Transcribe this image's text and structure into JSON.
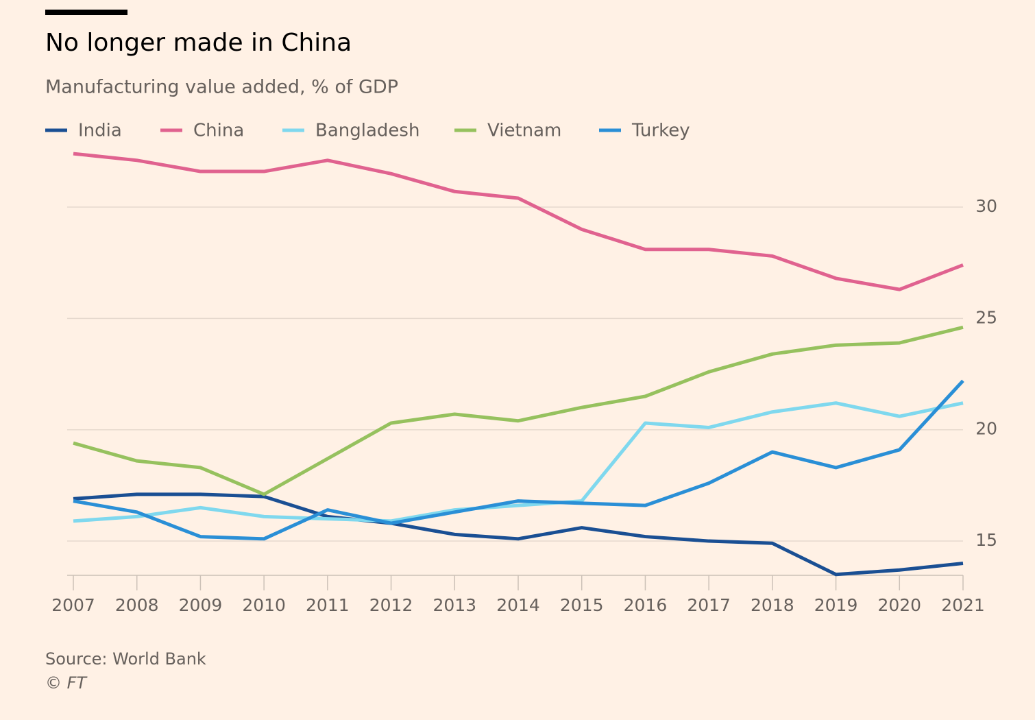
{
  "chart_data": {
    "type": "line",
    "title": "No longer made in China",
    "subtitle": "Manufacturing value added, % of GDP",
    "source": "Source: World Bank",
    "credit": "© FT",
    "categories": [
      "2007",
      "2008",
      "2009",
      "2010",
      "2011",
      "2012",
      "2013",
      "2014",
      "2015",
      "2016",
      "2017",
      "2018",
      "2019",
      "2020",
      "2021"
    ],
    "series": [
      {
        "name": "India",
        "color": "#1a4f93",
        "values": [
          16.9,
          17.1,
          17.1,
          17.0,
          16.1,
          15.8,
          15.3,
          15.1,
          15.6,
          15.2,
          15.0,
          14.9,
          13.5,
          13.7,
          14.0
        ]
      },
      {
        "name": "China",
        "color": "#e0628f",
        "values": [
          32.4,
          32.1,
          31.6,
          31.6,
          32.1,
          31.5,
          30.7,
          30.4,
          29.0,
          28.1,
          28.1,
          27.8,
          26.8,
          26.3,
          27.4
        ]
      },
      {
        "name": "Bangladesh",
        "color": "#7fd8ee",
        "values": [
          15.9,
          16.1,
          16.5,
          16.1,
          16.0,
          15.9,
          16.4,
          16.6,
          16.8,
          20.3,
          20.1,
          20.8,
          21.2,
          20.6,
          21.2
        ]
      },
      {
        "name": "Vietnam",
        "color": "#96c15e",
        "values": [
          19.4,
          18.6,
          18.3,
          17.1,
          18.7,
          20.3,
          20.7,
          20.4,
          21.0,
          21.5,
          22.6,
          23.4,
          23.8,
          23.9,
          24.6
        ]
      },
      {
        "name": "Turkey",
        "color": "#2a8fd6",
        "values": [
          16.8,
          16.3,
          15.2,
          15.1,
          16.4,
          15.8,
          16.3,
          16.8,
          16.7,
          16.6,
          17.6,
          19.0,
          18.3,
          19.1,
          22.2
        ]
      }
    ],
    "ylim": [
      13.4,
      33
    ],
    "yticks": [
      15,
      20,
      25,
      30
    ],
    "grid": true
  }
}
